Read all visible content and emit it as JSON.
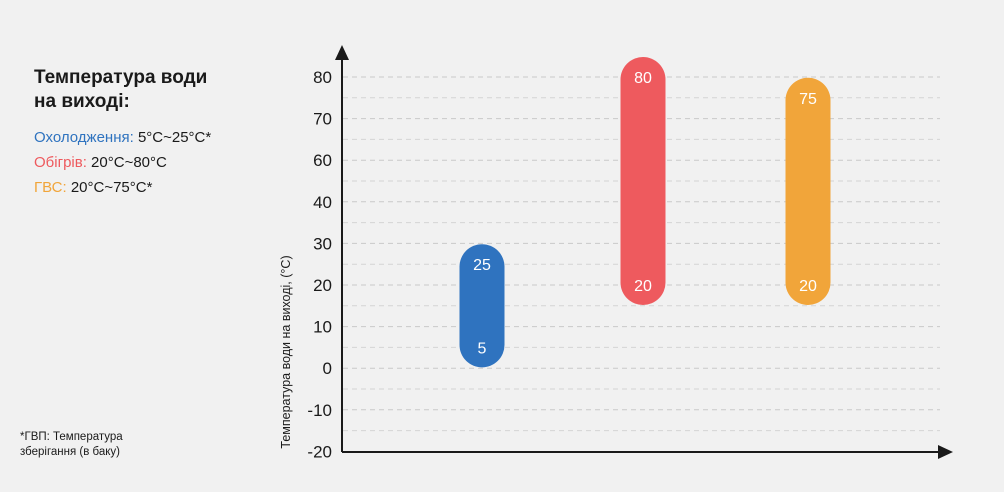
{
  "legend": {
    "title": "Температура води на виході:",
    "items": [
      {
        "name": "Охолодження:",
        "range": "5°C~25°C*",
        "color": "#2f73bf"
      },
      {
        "name": "Обігрів:",
        "range": "20°C~80°C",
        "color": "#ee5a5e"
      },
      {
        "name": "ГВС:",
        "range": "20°C~75°C*",
        "color": "#f1a53a"
      }
    ]
  },
  "footnote": "*ГВП: Температура зберігання (в баку)",
  "chart_data": {
    "type": "bar",
    "title": "",
    "xlabel": "",
    "ylabel": "Температура води на виході, (°C)",
    "yticks": [
      "80",
      "70",
      "60",
      "40",
      "30",
      "20",
      "10",
      "0",
      "-10",
      "-20"
    ],
    "grid": true,
    "series": [
      {
        "name": "Охолодження",
        "low": 5,
        "high": 25,
        "low_label": "5",
        "high_label": "25",
        "color": "#2f73bf"
      },
      {
        "name": "Обігрів",
        "low": 20,
        "high": 80,
        "low_label": "20",
        "high_label": "80",
        "color": "#ee5a5e"
      },
      {
        "name": "ГВС",
        "low": 20,
        "high": 75,
        "low_label": "20",
        "high_label": "75",
        "color": "#f1a53a"
      }
    ]
  }
}
